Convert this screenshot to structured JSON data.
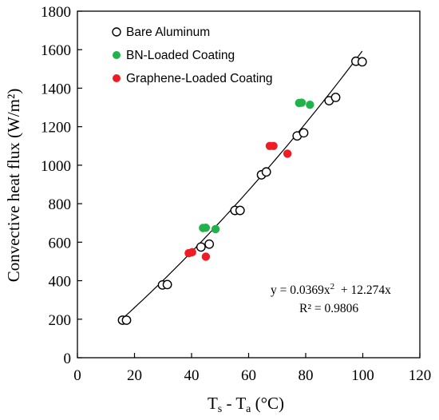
{
  "chart_data": {
    "type": "scatter",
    "xlabel": "Ts - Ta (°C)",
    "xlabel_parts": {
      "main1": "T",
      "sub1": "s",
      "mid": " - T",
      "sub2": "a",
      "tail": " (°C)"
    },
    "ylabel": "Convective heat flux (W/m²)",
    "xlim": [
      0,
      120
    ],
    "ylim": [
      0,
      1800
    ],
    "xticks": [
      0,
      20,
      40,
      60,
      80,
      100,
      120
    ],
    "yticks": [
      0,
      200,
      400,
      600,
      800,
      1000,
      1200,
      1400,
      1600,
      1800
    ],
    "grid": false,
    "legend_position": "top-left",
    "series": [
      {
        "name": "Bare Aluminum",
        "marker": "open-circle",
        "color": "#000000",
        "x": [
          15.8,
          17.2,
          29.8,
          31.5,
          43.3,
          46.2,
          55.2,
          57.0,
          64.5,
          66.2,
          77.0,
          79.3,
          88.2,
          90.5,
          97.6,
          99.8
        ],
        "y": [
          195,
          195,
          378,
          380,
          575,
          590,
          765,
          765,
          950,
          965,
          1152,
          1168,
          1335,
          1352,
          1540,
          1537
        ]
      },
      {
        "name": "BN-Loaded Coating",
        "marker": "filled-circle",
        "color": "#22b24c",
        "x": [
          44.0,
          45.0,
          48.4,
          77.7,
          78.6,
          81.5
        ],
        "y": [
          674,
          675,
          668,
          1323,
          1325,
          1314
        ]
      },
      {
        "name": "Graphene-Loaded Coating",
        "marker": "filled-circle",
        "color": "#ee1c24",
        "x": [
          39.0,
          40.2,
          45.0,
          67.4,
          68.7,
          73.6
        ],
        "y": [
          543,
          548,
          525,
          1100,
          1100,
          1060
        ]
      }
    ],
    "fit": {
      "a": 0.0369,
      "b": 12.274,
      "x_range": [
        15.8,
        99.8
      ],
      "equation_main": "y = 0.0369x",
      "equation_sup": "2",
      "equation_tail": "  + 12.274x",
      "r2_label": "R² = 0.9806"
    }
  }
}
